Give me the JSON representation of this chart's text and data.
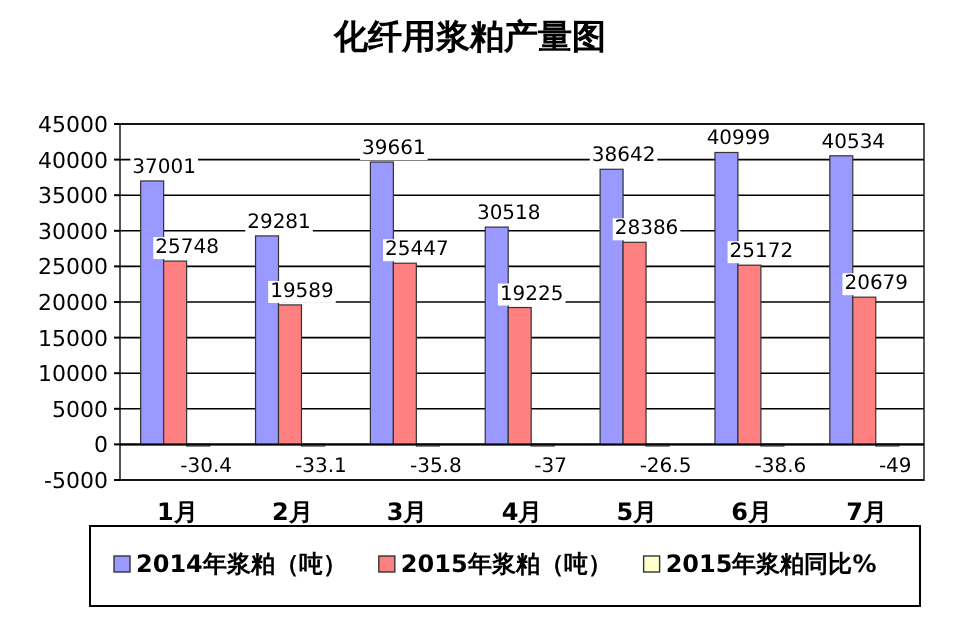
{
  "chart_data": {
    "type": "bar",
    "title": "化纤用浆粕产量图",
    "categories": [
      "1月",
      "2月",
      "3月",
      "4月",
      "5月",
      "6月",
      "7月"
    ],
    "series": [
      {
        "name": "2014年浆粕（吨）",
        "color": "#9999ff",
        "values": [
          37001,
          29281,
          39661,
          30518,
          38642,
          40999,
          40534
        ]
      },
      {
        "name": "2015年浆粕（吨）",
        "color": "#ff8080",
        "values": [
          25748,
          19589,
          25447,
          19225,
          28386,
          25172,
          20679
        ]
      },
      {
        "name": "2015年浆粕同比%",
        "color": "#ffffcc",
        "values": [
          -30.4,
          -33.1,
          -35.8,
          -37,
          -26.5,
          -38.6,
          -49
        ]
      }
    ],
    "ylim": [
      -5000,
      45000
    ],
    "yticks": [
      -5000,
      0,
      5000,
      10000,
      15000,
      20000,
      25000,
      30000,
      35000,
      40000,
      45000
    ],
    "grid": "y",
    "legend": "bottom",
    "data_labels": true
  }
}
